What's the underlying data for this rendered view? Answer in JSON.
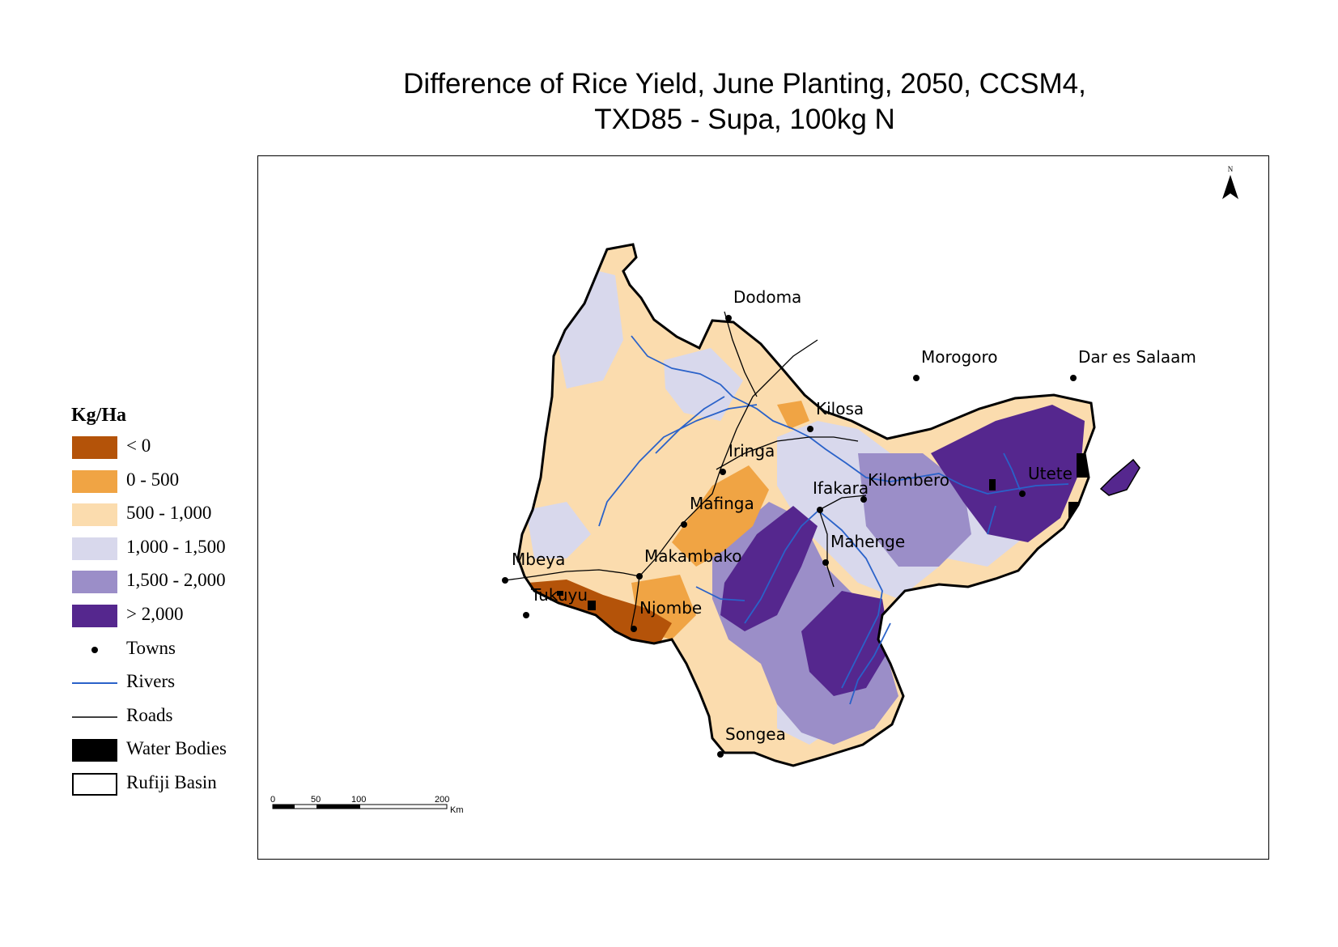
{
  "title": {
    "line1": "Difference of Rice Yield, June Planting, 2050, CCSM4,",
    "line2": "TXD85 - Supa, 100kg N"
  },
  "legend": {
    "title": "Kg/Ha",
    "classes": [
      {
        "label": "< 0",
        "color": "#b45309"
      },
      {
        "label": "0 - 500",
        "color": "#f0a444"
      },
      {
        "label": "500 - 1,000",
        "color": "#fbdcae"
      },
      {
        "label": "1,000 - 1,500",
        "color": "#d8d8ec"
      },
      {
        "label": "1,500 - 2,000",
        "color": "#9b8ec8"
      },
      {
        "label": "> 2,000",
        "color": "#55278e"
      }
    ],
    "symbols": [
      {
        "label": "Towns",
        "kind": "point"
      },
      {
        "label": "Rivers",
        "kind": "river-line",
        "color": "#2a62c9"
      },
      {
        "label": "Roads",
        "kind": "road-line",
        "color": "#000000"
      },
      {
        "label": "Water Bodies",
        "kind": "water-fill",
        "color": "#000000"
      },
      {
        "label": "Rufiji Basin",
        "kind": "basin-outline"
      }
    ]
  },
  "towns": [
    "Dodoma",
    "Morogoro",
    "Dar es Salaam",
    "Kilosa",
    "Iringa",
    "Ifakara",
    "Kilombero",
    "Utete",
    "Mafinga",
    "Mahenge",
    "Mbeya",
    "Makambako",
    "Tukuyu",
    "Njombe",
    "Songea"
  ],
  "north_arrow": {
    "label": "N",
    "icon": "north-arrow-icon"
  },
  "scale_bar": {
    "ticks": [
      "0",
      "50",
      "100",
      "200"
    ],
    "unit": "Km"
  }
}
